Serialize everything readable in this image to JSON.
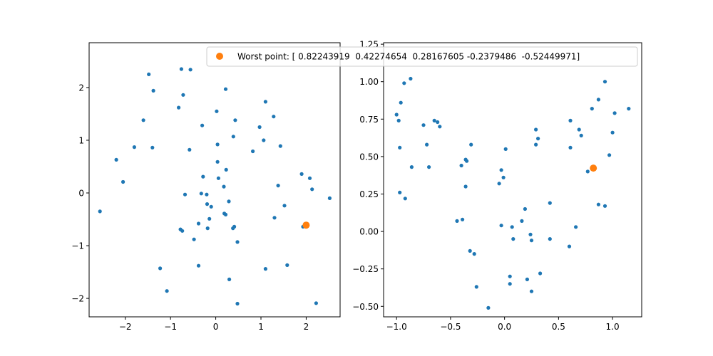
{
  "colors": {
    "series": "#1f77b4",
    "highlight": "#ff7f0e",
    "axes": "#000000"
  },
  "legend": {
    "label": "Worst point: [ 0.82243919  0.42274654  0.28167605 -0.2379486  -0.52449971]",
    "marker_color": "#ff7f0e",
    "placement": "upper-right of left plot"
  },
  "chart_data": [
    {
      "type": "scatter",
      "title": "",
      "xlabel": "",
      "ylabel": "",
      "xlim": [
        -2.8,
        2.75
      ],
      "ylim": [
        -2.35,
        2.85
      ],
      "xticks": [
        -2,
        -1,
        0,
        1,
        2
      ],
      "xtick_labels": [
        "−2",
        "−1",
        "0",
        "1",
        "2"
      ],
      "yticks": [
        -2,
        -1,
        0,
        1,
        2
      ],
      "ytick_labels": [
        "−2",
        "−1",
        "0",
        "1",
        "2"
      ],
      "grid": false,
      "series": [
        {
          "color": "#1f77b4",
          "points": [
            [
              -2.56,
              -0.35
            ],
            [
              -2.2,
              0.63
            ],
            [
              -2.05,
              0.21
            ],
            [
              -1.8,
              0.87
            ],
            [
              -1.6,
              1.38
            ],
            [
              -1.48,
              2.25
            ],
            [
              -1.38,
              1.94
            ],
            [
              -1.4,
              0.86
            ],
            [
              -1.23,
              -1.43
            ],
            [
              -1.08,
              -1.86
            ],
            [
              -0.82,
              1.62
            ],
            [
              -0.76,
              2.35
            ],
            [
              -0.72,
              1.86
            ],
            [
              -0.56,
              2.34
            ],
            [
              -0.58,
              0.82
            ],
            [
              -0.68,
              -0.03
            ],
            [
              -0.78,
              -0.69
            ],
            [
              -0.74,
              -0.72
            ],
            [
              -0.48,
              -0.88
            ],
            [
              -0.38,
              -0.58
            ],
            [
              -0.3,
              1.28
            ],
            [
              -0.28,
              0.31
            ],
            [
              -0.32,
              -0.01
            ],
            [
              -0.2,
              -0.03
            ],
            [
              -0.19,
              -0.21
            ],
            [
              -0.1,
              -0.26
            ],
            [
              -0.14,
              -0.49
            ],
            [
              -0.18,
              -0.67
            ],
            [
              -0.38,
              -1.38
            ],
            [
              0.02,
              1.55
            ],
            [
              0.04,
              0.92
            ],
            [
              0.04,
              0.59
            ],
            [
              0.06,
              0.28
            ],
            [
              0.22,
              1.97
            ],
            [
              0.23,
              0.44
            ],
            [
              0.18,
              0.12
            ],
            [
              0.29,
              -0.16
            ],
            [
              0.19,
              -0.39
            ],
            [
              0.22,
              -0.41
            ],
            [
              0.38,
              -0.67
            ],
            [
              0.41,
              -0.64
            ],
            [
              0.39,
              1.07
            ],
            [
              0.43,
              1.38
            ],
            [
              0.48,
              -0.93
            ],
            [
              0.3,
              -1.64
            ],
            [
              0.48,
              -2.1
            ],
            [
              0.82,
              0.79
            ],
            [
              0.97,
              1.25
            ],
            [
              1.06,
              1.0
            ],
            [
              1.1,
              1.73
            ],
            [
              1.28,
              1.45
            ],
            [
              1.43,
              0.89
            ],
            [
              1.38,
              0.14
            ],
            [
              1.3,
              -0.47
            ],
            [
              1.52,
              -0.24
            ],
            [
              1.1,
              -1.44
            ],
            [
              1.58,
              -1.37
            ],
            [
              1.9,
              0.36
            ],
            [
              1.93,
              -0.64
            ],
            [
              2.08,
              0.28
            ],
            [
              2.13,
              0.07
            ],
            [
              2.22,
              -2.09
            ],
            [
              2.52,
              -0.1
            ]
          ]
        }
      ],
      "highlight": {
        "x": 2.0,
        "y": -0.61,
        "color": "#ff7f0e"
      }
    },
    {
      "type": "scatter",
      "title": "",
      "xlabel": "",
      "ylabel": "",
      "xlim": [
        -1.12,
        1.27
      ],
      "ylim": [
        -0.57,
        1.26
      ],
      "xticks": [
        -1.0,
        -0.5,
        0.0,
        0.5,
        1.0
      ],
      "xtick_labels": [
        "−1.0",
        "−0.5",
        "0.0",
        "0.5",
        "1.0"
      ],
      "yticks": [
        -0.5,
        -0.25,
        0.0,
        0.25,
        0.5,
        0.75,
        1.0,
        1.25
      ],
      "ytick_labels": [
        "−0.50",
        "−0.25",
        "0.00",
        "0.25",
        "0.50",
        "0.75",
        "1.00",
        "1.25"
      ],
      "grid": false,
      "series": [
        {
          "color": "#1f77b4",
          "points": [
            [
              -0.87,
              1.02
            ],
            [
              -0.93,
              0.99
            ],
            [
              -0.96,
              0.86
            ],
            [
              -1.0,
              0.78
            ],
            [
              -0.98,
              0.74
            ],
            [
              -0.97,
              0.56
            ],
            [
              -0.97,
              0.26
            ],
            [
              -0.92,
              0.22
            ],
            [
              -0.86,
              0.43
            ],
            [
              -0.75,
              0.71
            ],
            [
              -0.72,
              0.58
            ],
            [
              -0.7,
              0.43
            ],
            [
              -0.65,
              0.74
            ],
            [
              -0.62,
              0.73
            ],
            [
              -0.6,
              0.7
            ],
            [
              -0.4,
              0.44
            ],
            [
              -0.36,
              0.48
            ],
            [
              -0.35,
              0.47
            ],
            [
              -0.31,
              0.58
            ],
            [
              -0.36,
              0.3
            ],
            [
              -0.44,
              0.07
            ],
            [
              -0.39,
              0.08
            ],
            [
              -0.32,
              -0.13
            ],
            [
              -0.28,
              -0.15
            ],
            [
              -0.26,
              -0.37
            ],
            [
              -0.15,
              -0.51
            ],
            [
              -0.05,
              0.32
            ],
            [
              -0.03,
              0.41
            ],
            [
              -0.01,
              0.36
            ],
            [
              0.01,
              0.55
            ],
            [
              -0.03,
              0.04
            ],
            [
              0.05,
              -0.3
            ],
            [
              0.05,
              -0.35
            ],
            [
              0.07,
              0.03
            ],
            [
              0.08,
              -0.05
            ],
            [
              0.16,
              0.07
            ],
            [
              0.19,
              0.15
            ],
            [
              0.21,
              -0.32
            ],
            [
              0.24,
              -0.02
            ],
            [
              0.25,
              -0.06
            ],
            [
              0.25,
              -0.4
            ],
            [
              0.33,
              -0.28
            ],
            [
              0.29,
              0.58
            ],
            [
              0.29,
              0.68
            ],
            [
              0.31,
              0.62
            ],
            [
              0.42,
              0.19
            ],
            [
              0.42,
              -0.05
            ],
            [
              0.6,
              -0.1
            ],
            [
              0.61,
              0.74
            ],
            [
              0.61,
              0.56
            ],
            [
              0.66,
              0.03
            ],
            [
              0.69,
              0.68
            ],
            [
              0.71,
              0.64
            ],
            [
              0.77,
              0.4
            ],
            [
              0.81,
              0.82
            ],
            [
              0.87,
              0.88
            ],
            [
              0.87,
              0.18
            ],
            [
              0.93,
              1.0
            ],
            [
              0.93,
              0.17
            ],
            [
              0.97,
              0.51
            ],
            [
              1.0,
              0.66
            ],
            [
              1.02,
              0.79
            ],
            [
              1.15,
              0.82
            ]
          ]
        }
      ],
      "highlight": {
        "x": 0.82243919,
        "y": 0.42274654,
        "color": "#ff7f0e"
      }
    }
  ]
}
